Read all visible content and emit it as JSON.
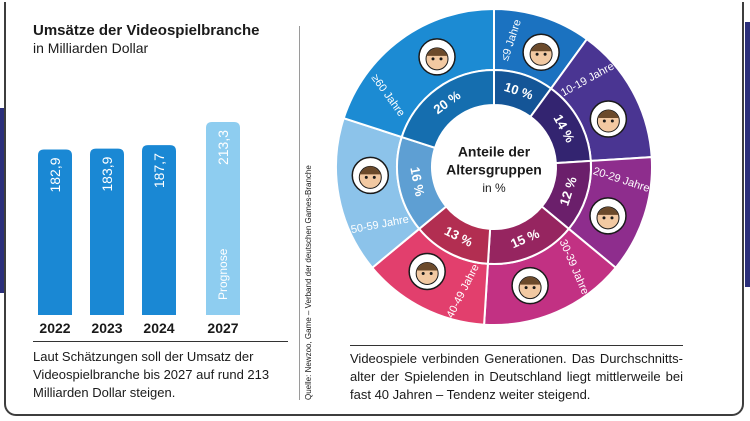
{
  "bar_chart": {
    "title": "Umsätze der Videospielbranche",
    "subtitle": "in Milliarden Dollar",
    "forecast_label": "Prognose",
    "caption": "Laut Schätzungen soll der Umsatz der Videospielbranche bis 2027 auf rund 213 Milliarden Dollar steigen."
  },
  "donut": {
    "center_line1": "Anteile der",
    "center_line2": "Altersgruppen",
    "center_unit": "in %"
  },
  "source": "Quelle: Newzoo, Game – Verband der deutschen Games-Branche",
  "caption_right": "Videospiele verbinden Generationen. Das Durch­schnitts­alter der Spielenden in Deutschland liegt mittler­weile bei fast 40 Jahren – Tendenz weiter steigend.",
  "chart_data": [
    {
      "type": "bar",
      "title": "Umsätze der Videospielbranche",
      "subtitle": "in Milliarden Dollar",
      "categories": [
        "2022",
        "2023",
        "2024",
        "2027"
      ],
      "values": [
        182.9,
        183.9,
        187.7,
        213.3
      ],
      "value_labels": [
        "182,9",
        "183,9",
        "187,7",
        "213,3"
      ],
      "forecast": [
        false,
        false,
        false,
        true
      ],
      "colors": [
        "#1a88d4",
        "#1a88d4",
        "#1a88d4",
        "#8ecdf0"
      ]
    },
    {
      "type": "pie",
      "title": "Anteile der Altersgruppen",
      "unit": "in %",
      "categories": [
        "≤9 Jahre",
        "10-19 Jahre",
        "20-29 Jahre",
        "30-39 Jahre",
        "40-49 Jahre",
        "50-59 Jahre",
        "≥60 Jahre"
      ],
      "values": [
        10,
        14,
        12,
        15,
        13,
        16,
        20
      ],
      "value_labels": [
        "10 %",
        "14 %",
        "12 %",
        "15 %",
        "13 %",
        "16 %",
        "20 %"
      ],
      "colors": [
        "#1b72c0",
        "#4a3592",
        "#8e2d8d",
        "#c23183",
        "#e23f6d",
        "#8cc3ea",
        "#1c8bd3"
      ],
      "inner_colors": [
        "#145597",
        "#332470",
        "#6b1f6b",
        "#962560",
        "#b22e51",
        "#5e9fd3",
        "#156eaf"
      ]
    }
  ]
}
